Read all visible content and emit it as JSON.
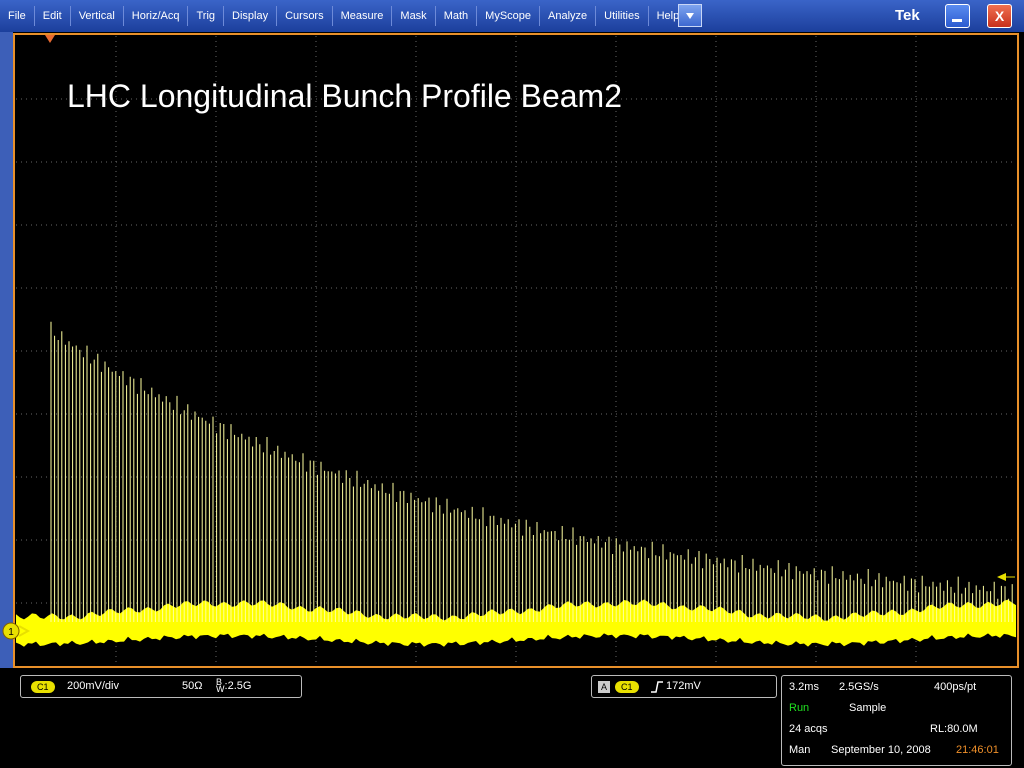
{
  "menu": [
    "File",
    "Edit",
    "Vertical",
    "Horiz/Acq",
    "Trig",
    "Display",
    "Cursors",
    "Measure",
    "Mask",
    "Math",
    "MyScope",
    "Analyze",
    "Utilities",
    "Help"
  ],
  "title_bar": {
    "brand": "Tek",
    "close": "X"
  },
  "annotation": "LHC Longitudinal Bunch Profile Beam2",
  "channel_marker": "1",
  "vertical": {
    "channel": "C1",
    "scale": "200mV/div",
    "impedance": "50Ω",
    "bandwidth_prefix": "B",
    "bandwidth_sub": "W",
    "bandwidth": ":2.5G"
  },
  "trigger": {
    "source_mode": "A",
    "channel": "C1",
    "level": "172mV"
  },
  "acquisition": {
    "time_scale": "3.2ms",
    "sample_rate": "2.5GS/s",
    "resolution": "400ps/pt",
    "state": "Run",
    "mode": "Sample",
    "acqs": "24 acqs",
    "record_length": "RL:80.0M",
    "trigger_mode": "Man",
    "date": "September 10, 2008",
    "time": "21:46:01"
  }
}
